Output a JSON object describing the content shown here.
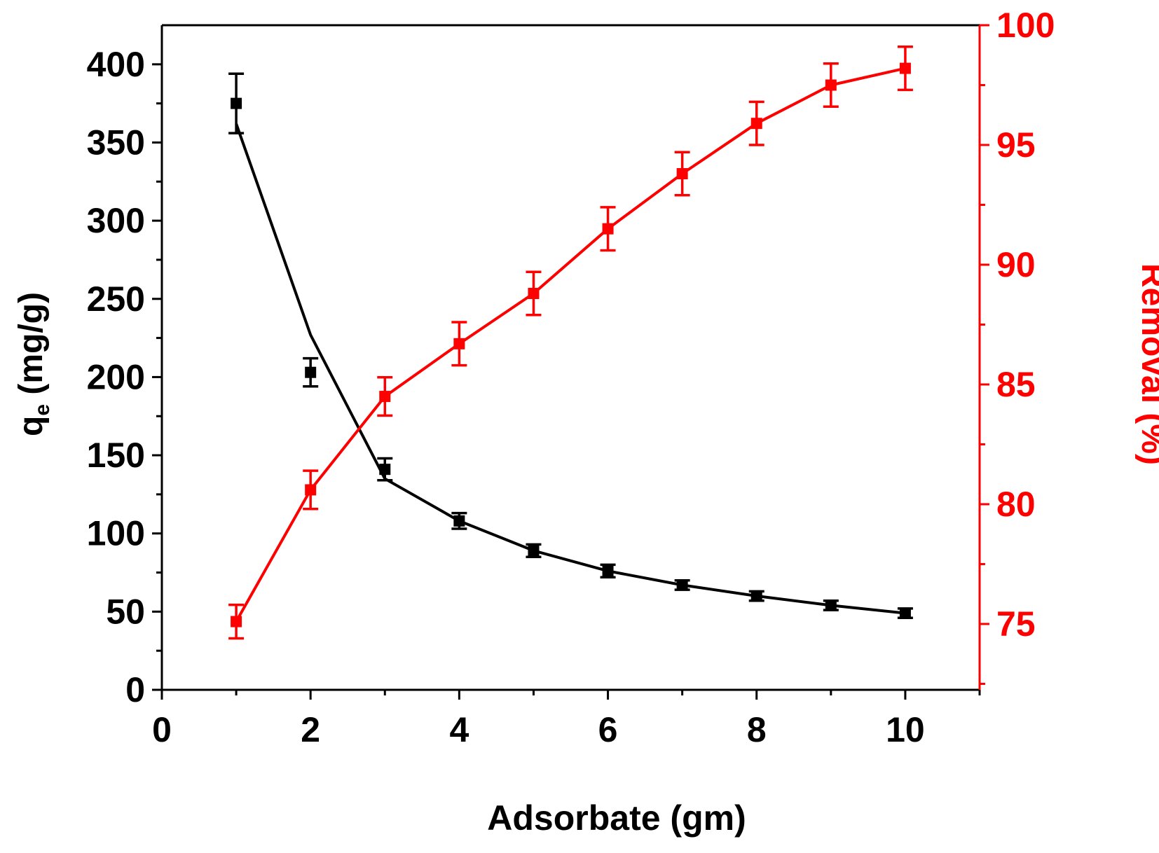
{
  "chart_data": {
    "type": "line",
    "xlabel": "Adsorbate (gm)",
    "ylabel_left": {
      "main": "q",
      "sub": "e",
      "rest": " (mg/g)"
    },
    "ylabel_right": "Removal (%)",
    "xlim": [
      0,
      11
    ],
    "ylim_left": [
      0,
      425
    ],
    "ylim_right": [
      72.25,
      100
    ],
    "xticks": [
      0,
      2,
      4,
      6,
      8,
      10
    ],
    "xtick_labels": [
      "0",
      "2",
      "4",
      "6",
      "8",
      "10"
    ],
    "yticks_left": [
      0,
      50,
      100,
      150,
      200,
      250,
      300,
      350,
      400
    ],
    "ytick_labels_left": [
      "0",
      "50",
      "100",
      "150",
      "200",
      "250",
      "300",
      "350",
      "400"
    ],
    "yticks_right": [
      75,
      80,
      85,
      90,
      95,
      100
    ],
    "ytick_labels_right": [
      "75",
      "80",
      "85",
      "90",
      "95",
      "100"
    ],
    "colors": {
      "left": "#000000",
      "right": "#ff0000"
    },
    "x": [
      1,
      2,
      3,
      4,
      5,
      6,
      7,
      8,
      9,
      10
    ],
    "series": [
      {
        "axis": "left",
        "color": "#000000",
        "marker": "square",
        "values": [
          375,
          203,
          141,
          108,
          89,
          76,
          67,
          60,
          54,
          49
        ],
        "errors": [
          19,
          9,
          7,
          5,
          4,
          4,
          3,
          3,
          3,
          3
        ],
        "fit_line": [
          362,
          227,
          135,
          108,
          89,
          76,
          67,
          60,
          54,
          49
        ]
      },
      {
        "axis": "right",
        "color": "#ff0000",
        "marker": "square",
        "values": [
          75.1,
          80.6,
          84.5,
          86.7,
          88.8,
          91.5,
          93.8,
          95.9,
          97.5,
          98.2
        ],
        "errors": [
          0.7,
          0.8,
          0.8,
          0.9,
          0.9,
          0.9,
          0.9,
          0.9,
          0.9,
          0.9
        ],
        "fit_line": [
          75.1,
          80.6,
          84.5,
          86.7,
          88.8,
          91.5,
          93.8,
          95.9,
          97.5,
          98.2
        ]
      }
    ]
  }
}
